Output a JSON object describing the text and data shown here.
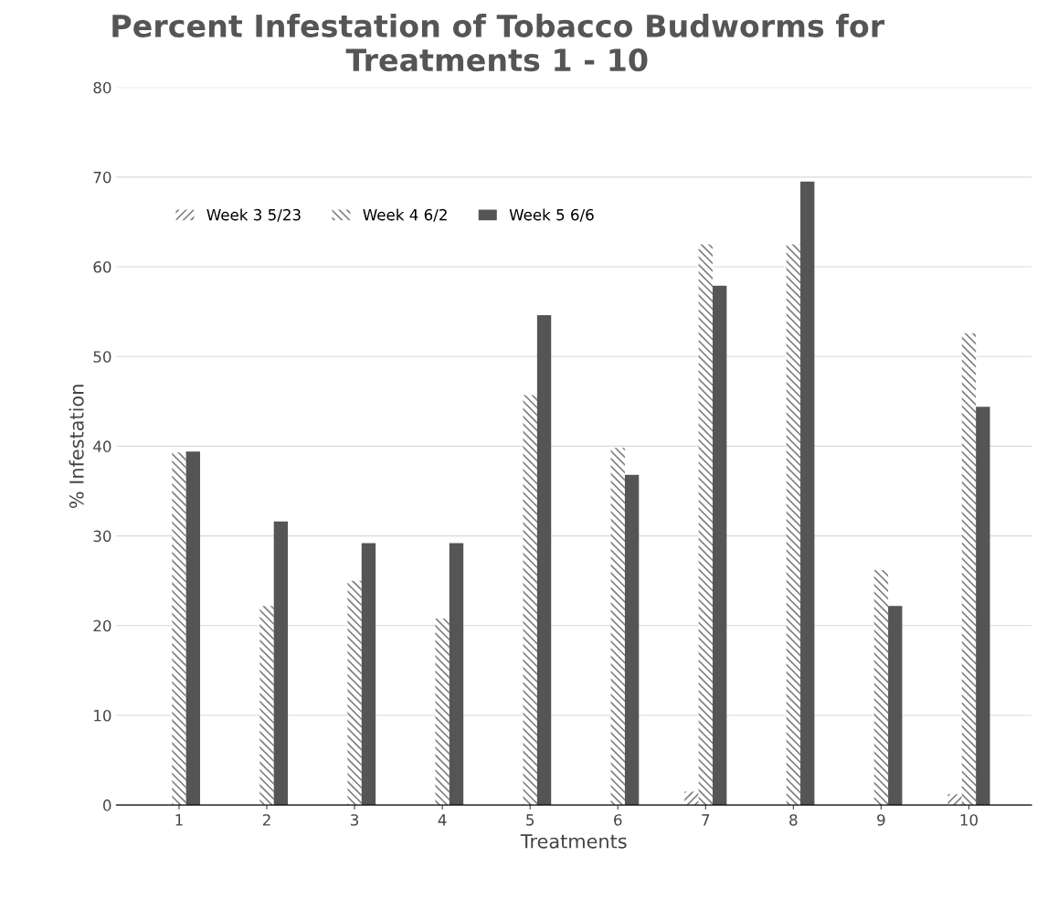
{
  "chart_data": {
    "type": "bar",
    "title": "Percent Infestation of Tobacco Budworms for\nTreatments 1 - 10",
    "xlabel": "Treatments",
    "ylabel": "% Infestation",
    "categories": [
      "1",
      "2",
      "3",
      "4",
      "5",
      "6",
      "7",
      "8",
      "9",
      "10"
    ],
    "series": [
      {
        "name": "Week 3 5/23",
        "color": "#808080",
        "values": [
          0,
          0,
          0,
          0,
          0,
          0,
          1.5,
          0,
          0,
          1.2
        ]
      },
      {
        "name": "Week 4 6/2",
        "color": "#808080",
        "values": [
          39.3,
          22.2,
          25,
          20.8,
          45.7,
          39.8,
          62.5,
          62.5,
          26.2,
          52.6
        ]
      },
      {
        "name": "Week 5 6/6",
        "color": "#555555",
        "values": [
          39.4,
          31.6,
          29.2,
          29.2,
          54.6,
          36.8,
          57.9,
          69.5,
          22.2,
          44.4
        ]
      }
    ],
    "ylim": [
      0,
      80
    ],
    "yticks": [
      0,
      10,
      20,
      30,
      40,
      50,
      60,
      70,
      80
    ],
    "grid": "y",
    "legend": "top left"
  }
}
